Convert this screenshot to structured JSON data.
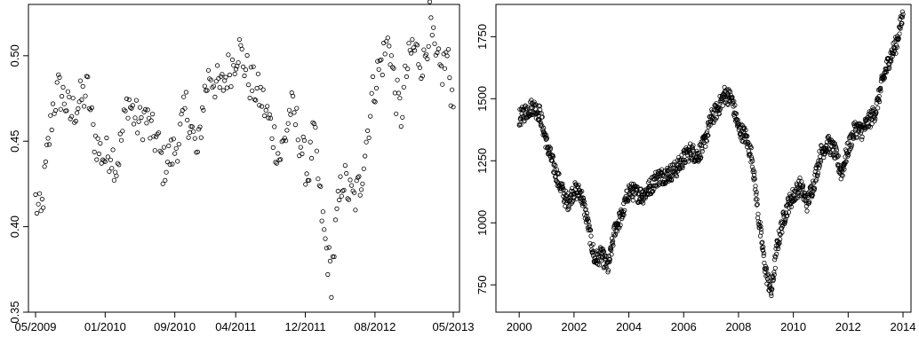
{
  "chart_data": [
    {
      "type": "scatter",
      "title": "",
      "xlabel": "",
      "ylabel": "",
      "x_range": [
        "2009-05-01",
        "2013-05-01"
      ],
      "ylim": [
        0.35,
        0.53
      ],
      "grid": false,
      "x_ticks": [
        "05/2009",
        "01/2010",
        "09/2010",
        "04/2011",
        "12/2011",
        "08/2012",
        "05/2013"
      ],
      "y_ticks": [
        "0.35",
        "0.40",
        "0.45",
        "0.50"
      ],
      "series": [
        {
          "marker": "open-circle",
          "x": [
            "2009-05-01",
            "2009-05-20",
            "2009-06-10",
            "2009-07-01",
            "2009-07-20",
            "2009-08-10",
            "2009-09-01",
            "2009-09-20",
            "2009-10-10",
            "2009-11-01",
            "2009-11-20",
            "2009-12-10",
            "2010-01-01",
            "2010-01-20",
            "2010-02-10",
            "2010-03-01",
            "2010-03-20",
            "2010-04-10",
            "2010-05-01",
            "2010-05-20",
            "2010-06-10",
            "2010-07-01",
            "2010-07-20",
            "2010-08-10",
            "2010-09-01",
            "2010-09-20",
            "2010-10-10",
            "2010-11-01",
            "2010-11-20",
            "2010-12-10",
            "2011-01-01",
            "2011-01-20",
            "2011-02-10",
            "2011-03-01",
            "2011-03-20",
            "2011-04-10",
            "2011-05-01",
            "2011-05-20",
            "2011-06-10",
            "2011-07-01",
            "2011-07-20",
            "2011-08-10",
            "2011-09-01",
            "2011-09-20",
            "2011-10-10",
            "2011-11-01",
            "2011-11-20",
            "2011-12-10",
            "2012-01-01",
            "2012-01-20",
            "2012-02-10",
            "2012-03-01",
            "2012-03-20",
            "2012-04-10",
            "2012-05-01",
            "2012-05-20",
            "2012-06-10",
            "2012-07-01",
            "2012-07-20",
            "2012-08-10",
            "2012-09-01",
            "2012-09-20",
            "2012-10-10",
            "2012-11-01",
            "2012-11-20",
            "2012-12-10",
            "2013-01-01",
            "2013-01-20",
            "2013-02-10",
            "2013-03-01",
            "2013-03-20",
            "2013-04-10",
            "2013-05-01"
          ],
          "y": [
            0.415,
            0.405,
            0.44,
            0.47,
            0.48,
            0.475,
            0.465,
            0.47,
            0.475,
            0.48,
            0.455,
            0.445,
            0.44,
            0.445,
            0.435,
            0.455,
            0.475,
            0.465,
            0.46,
            0.465,
            0.455,
            0.45,
            0.435,
            0.44,
            0.445,
            0.455,
            0.47,
            0.455,
            0.44,
            0.475,
            0.49,
            0.485,
            0.48,
            0.49,
            0.495,
            0.505,
            0.495,
            0.485,
            0.48,
            0.475,
            0.465,
            0.455,
            0.44,
            0.45,
            0.47,
            0.46,
            0.445,
            0.43,
            0.455,
            0.42,
            0.39,
            0.37,
            0.405,
            0.43,
            0.42,
            0.415,
            0.425,
            0.45,
            0.475,
            0.49,
            0.5,
            0.51,
            0.48,
            0.465,
            0.49,
            0.505,
            0.5,
            0.495,
            0.52,
            0.495,
            0.49,
            0.5,
            0.47
          ]
        }
      ]
    },
    {
      "type": "scatter",
      "title": "",
      "xlabel": "",
      "ylabel": "",
      "x_range": [
        1999.8,
        2014.0
      ],
      "ylim": [
        640,
        1880
      ],
      "grid": false,
      "x_ticks": [
        "2000",
        "2002",
        "2004",
        "2006",
        "2008",
        "2010",
        "2012",
        "2014"
      ],
      "y_ticks": [
        "750",
        "1000",
        "1250",
        "1500",
        "1750"
      ],
      "series": [
        {
          "marker": "open-circle",
          "x": [
            2000.0,
            2000.25,
            2000.5,
            2000.75,
            2001.0,
            2001.25,
            2001.5,
            2001.75,
            2002.0,
            2002.25,
            2002.5,
            2002.75,
            2003.0,
            2003.25,
            2003.5,
            2003.75,
            2004.0,
            2004.25,
            2004.5,
            2004.75,
            2005.0,
            2005.25,
            2005.5,
            2005.75,
            2006.0,
            2006.25,
            2006.5,
            2006.75,
            2007.0,
            2007.25,
            2007.5,
            2007.75,
            2008.0,
            2008.25,
            2008.5,
            2008.75,
            2009.0,
            2009.2,
            2009.4,
            2009.6,
            2009.8,
            2010.0,
            2010.25,
            2010.5,
            2010.75,
            2011.0,
            2011.25,
            2011.5,
            2011.75,
            2012.0,
            2012.25,
            2012.5,
            2012.75,
            2013.0,
            2013.25,
            2013.5,
            2013.75,
            2014.0
          ],
          "y": [
            1420,
            1450,
            1470,
            1440,
            1320,
            1230,
            1150,
            1080,
            1130,
            1120,
            1000,
            850,
            870,
            820,
            980,
            1030,
            1130,
            1120,
            1110,
            1140,
            1180,
            1190,
            1200,
            1220,
            1260,
            1290,
            1270,
            1320,
            1420,
            1460,
            1520,
            1500,
            1380,
            1350,
            1260,
            1000,
            800,
            720,
            900,
            1000,
            1070,
            1110,
            1150,
            1080,
            1160,
            1280,
            1320,
            1290,
            1200,
            1300,
            1380,
            1370,
            1410,
            1450,
            1570,
            1660,
            1720,
            1840
          ]
        }
      ]
    }
  ]
}
